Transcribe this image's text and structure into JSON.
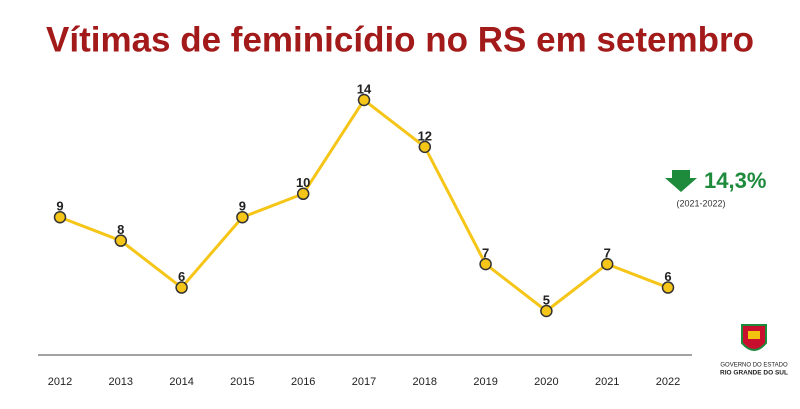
{
  "chart_data": {
    "type": "line",
    "title": "Vítimas de feminicídio no RS em setembro",
    "categories": [
      "2012",
      "2013",
      "2014",
      "2015",
      "2016",
      "2017",
      "2018",
      "2019",
      "2020",
      "2021",
      "2022"
    ],
    "series": [
      {
        "name": "Vítimas",
        "color": "#f5c518",
        "values": [
          9,
          8,
          6,
          9,
          10,
          14,
          12,
          7,
          5,
          7,
          6
        ]
      }
    ],
    "annotation": {
      "text": "14,3%",
      "period": "(2021-2022)",
      "color": "#1e8a3c"
    },
    "logo": {
      "line1": "GOVERNO DO ESTADO",
      "line2": "RIO GRANDE DO SUL"
    }
  }
}
